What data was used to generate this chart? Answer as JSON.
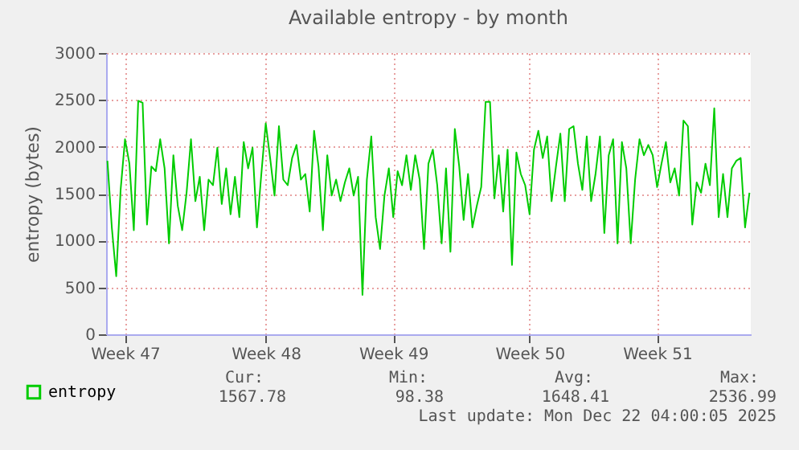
{
  "chart_data": {
    "type": "line",
    "title": "Available entropy - by month",
    "ylabel": "entropy (bytes)",
    "categories": [
      null,
      null,
      null,
      null,
      "Week 47",
      null,
      null,
      null,
      null,
      null,
      null,
      null,
      null,
      null,
      null,
      null,
      null,
      null,
      null,
      null,
      null,
      null,
      null,
      null,
      null,
      null,
      null,
      null,
      null,
      null,
      null,
      null,
      null,
      null,
      null,
      null,
      "Week 48",
      null,
      null,
      null,
      null,
      null,
      null,
      null,
      null,
      null,
      null,
      null,
      null,
      null,
      null,
      null,
      null,
      null,
      null,
      null,
      null,
      null,
      null,
      null,
      null,
      null,
      null,
      null,
      null,
      "Week 49",
      null,
      null,
      null,
      null,
      null,
      null,
      null,
      null,
      null,
      null,
      null,
      null,
      null,
      null,
      null,
      null,
      null,
      null,
      null,
      null,
      null,
      null,
      null,
      null,
      null,
      null,
      null,
      null,
      null,
      null,
      "Week 50",
      null,
      null,
      null,
      null,
      null,
      null,
      null,
      null,
      null,
      null,
      null,
      null,
      null,
      null,
      null,
      null,
      null,
      null,
      null,
      null,
      null,
      null,
      null,
      null,
      null,
      null,
      null,
      null,
      "Week 51",
      null,
      null,
      null,
      null,
      null,
      null,
      null,
      null,
      null,
      null,
      null,
      null,
      null,
      null,
      null,
      null,
      null,
      null,
      null,
      null,
      null
    ],
    "ylim": [
      0,
      3000
    ],
    "yticks": [
      0,
      500,
      1000,
      1500,
      2000,
      2500,
      3000
    ],
    "grid": true,
    "legend": "bottom left",
    "series": [
      {
        "name": "entropy",
        "color": "#00cc00",
        "values": [
          1850,
          1140,
          620,
          1540,
          2080,
          1820,
          1110,
          2490,
          2470,
          1170,
          1790,
          1740,
          2080,
          1770,
          970,
          1910,
          1370,
          1110,
          1510,
          2080,
          1420,
          1680,
          1110,
          1650,
          1590,
          1990,
          1390,
          1770,
          1280,
          1680,
          1250,
          2050,
          1770,
          1990,
          1140,
          1710,
          2250,
          1880,
          1480,
          2220,
          1650,
          1590,
          1880,
          2020,
          1650,
          1710,
          1310,
          2170,
          1790,
          1110,
          1910,
          1480,
          1650,
          1420,
          1620,
          1770,
          1480,
          1680,
          420,
          1650,
          2110,
          1250,
          910,
          1480,
          1770,
          1250,
          1740,
          1590,
          1910,
          1540,
          1910,
          1650,
          910,
          1820,
          1970,
          1590,
          970,
          1770,
          880,
          2190,
          1790,
          1220,
          1710,
          1140,
          1370,
          1570,
          2480,
          2480,
          1450,
          1910,
          1310,
          1970,
          740,
          1940,
          1710,
          1590,
          1280,
          1970,
          2170,
          1880,
          2110,
          1420,
          1790,
          2140,
          1420,
          2190,
          2220,
          1820,
          1540,
          2110,
          1420,
          1710,
          2110,
          1080,
          1910,
          2080,
          970,
          2050,
          1770,
          970,
          1650,
          2080,
          1910,
          2020,
          1910,
          1570,
          1820,
          2050,
          1620,
          1770,
          1480,
          2280,
          2220,
          1170,
          1620,
          1510,
          1820,
          1590,
          2410,
          1250,
          1710,
          1250,
          1770,
          1850,
          1880,
          1140,
          1510
        ]
      }
    ],
    "annotations": [
      "Cur:",
      "1567.78",
      "Min:",
      "98.38",
      "Avg:",
      "1648.41",
      "Max:",
      "2536.99",
      "Last update: Mon Dec 22 04:00:05 2025"
    ]
  }
}
